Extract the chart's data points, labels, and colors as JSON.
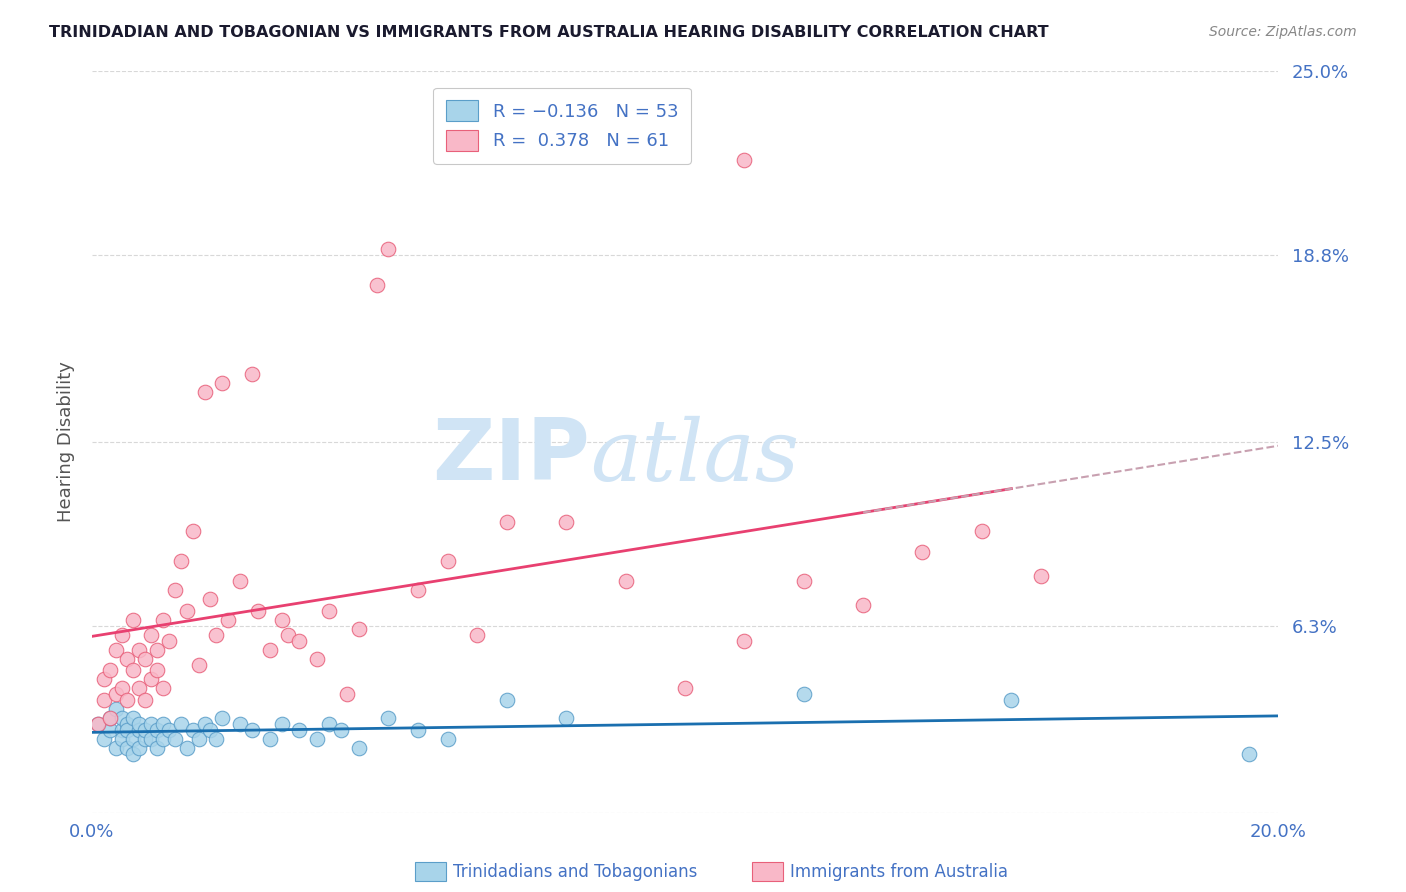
{
  "title": "TRINIDADIAN AND TOBAGONIAN VS IMMIGRANTS FROM AUSTRALIA HEARING DISABILITY CORRELATION CHART",
  "source": "Source: ZipAtlas.com",
  "ylabel": "Hearing Disability",
  "x_min": 0.0,
  "x_max": 0.2,
  "y_min": 0.0,
  "y_max": 0.25,
  "x_ticks": [
    0.0,
    0.05,
    0.1,
    0.15,
    0.2
  ],
  "x_tick_labels": [
    "0.0%",
    "",
    "",
    "",
    "20.0%"
  ],
  "y_ticks": [
    0.0,
    0.063,
    0.125,
    0.188,
    0.25
  ],
  "y_tick_labels": [
    "",
    "6.3%",
    "12.5%",
    "18.8%",
    "25.0%"
  ],
  "series_blue": {
    "name": "Trinidadians and Tobagonians",
    "color": "#a8d4ea",
    "edge_color": "#5b9ec9",
    "x": [
      0.001,
      0.002,
      0.003,
      0.003,
      0.004,
      0.004,
      0.005,
      0.005,
      0.005,
      0.006,
      0.006,
      0.006,
      0.007,
      0.007,
      0.007,
      0.008,
      0.008,
      0.008,
      0.009,
      0.009,
      0.01,
      0.01,
      0.011,
      0.011,
      0.012,
      0.012,
      0.013,
      0.014,
      0.015,
      0.016,
      0.017,
      0.018,
      0.019,
      0.02,
      0.021,
      0.022,
      0.025,
      0.027,
      0.03,
      0.032,
      0.035,
      0.038,
      0.04,
      0.042,
      0.045,
      0.05,
      0.055,
      0.06,
      0.07,
      0.08,
      0.12,
      0.155,
      0.195
    ],
    "y": [
      0.03,
      0.025,
      0.028,
      0.032,
      0.022,
      0.035,
      0.028,
      0.032,
      0.025,
      0.03,
      0.022,
      0.028,
      0.025,
      0.032,
      0.02,
      0.028,
      0.022,
      0.03,
      0.025,
      0.028,
      0.03,
      0.025,
      0.028,
      0.022,
      0.03,
      0.025,
      0.028,
      0.025,
      0.03,
      0.022,
      0.028,
      0.025,
      0.03,
      0.028,
      0.025,
      0.032,
      0.03,
      0.028,
      0.025,
      0.03,
      0.028,
      0.025,
      0.03,
      0.028,
      0.022,
      0.032,
      0.028,
      0.025,
      0.038,
      0.032,
      0.04,
      0.038,
      0.02
    ]
  },
  "series_pink": {
    "name": "Immigrants from Australia",
    "color": "#f9b8c8",
    "edge_color": "#e8607a",
    "x": [
      0.001,
      0.002,
      0.002,
      0.003,
      0.003,
      0.004,
      0.004,
      0.005,
      0.005,
      0.006,
      0.006,
      0.007,
      0.007,
      0.008,
      0.008,
      0.009,
      0.009,
      0.01,
      0.01,
      0.011,
      0.011,
      0.012,
      0.012,
      0.013,
      0.014,
      0.015,
      0.016,
      0.017,
      0.018,
      0.019,
      0.02,
      0.021,
      0.022,
      0.023,
      0.025,
      0.027,
      0.028,
      0.03,
      0.032,
      0.033,
      0.035,
      0.038,
      0.04,
      0.043,
      0.045,
      0.048,
      0.05,
      0.055,
      0.06,
      0.065,
      0.07,
      0.08,
      0.09,
      0.1,
      0.11,
      0.12,
      0.13,
      0.14,
      0.15,
      0.16,
      0.11
    ],
    "y": [
      0.03,
      0.038,
      0.045,
      0.032,
      0.048,
      0.04,
      0.055,
      0.042,
      0.06,
      0.038,
      0.052,
      0.048,
      0.065,
      0.042,
      0.055,
      0.038,
      0.052,
      0.045,
      0.06,
      0.048,
      0.055,
      0.042,
      0.065,
      0.058,
      0.075,
      0.085,
      0.068,
      0.095,
      0.05,
      0.142,
      0.072,
      0.06,
      0.145,
      0.065,
      0.078,
      0.148,
      0.068,
      0.055,
      0.065,
      0.06,
      0.058,
      0.052,
      0.068,
      0.04,
      0.062,
      0.178,
      0.19,
      0.075,
      0.085,
      0.06,
      0.098,
      0.098,
      0.078,
      0.042,
      0.058,
      0.078,
      0.07,
      0.088,
      0.095,
      0.08,
      0.22
    ]
  },
  "blue_line_color": "#1a6faf",
  "pink_line_color": "#e84070",
  "dashed_line_color": "#c8a0b0",
  "grid_color": "#d8d8d8",
  "title_color": "#1a1a2e",
  "axis_label_color": "#4472c4",
  "watermark_zip": "ZIP",
  "watermark_atlas": "atlas",
  "watermark_color": "#d0e4f5",
  "background_color": "#ffffff"
}
